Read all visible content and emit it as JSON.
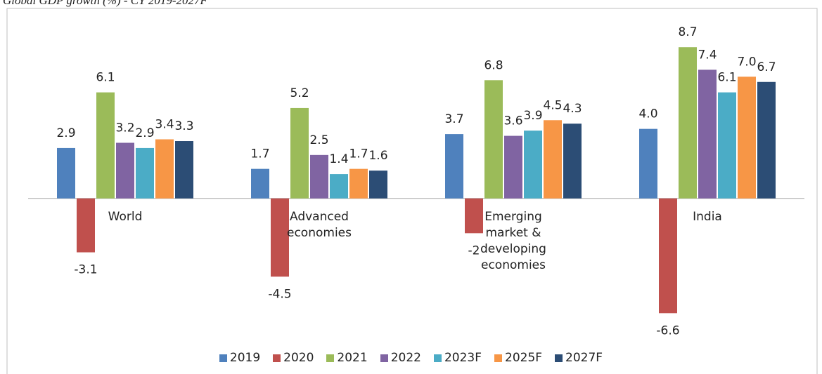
{
  "chart_data": {
    "type": "bar",
    "title": "Global GDP growth (%) - CY 2019-2027F",
    "categories": [
      "World",
      "Advanced economies",
      "Emerging market & developing economies",
      "India"
    ],
    "series": [
      {
        "name": "2019",
        "color": "#4f81bd",
        "values": [
          2.9,
          1.7,
          3.7,
          4.0
        ],
        "value_labels": [
          "2.9",
          "1.7",
          "3.7",
          "4.0"
        ]
      },
      {
        "name": "2020",
        "color": "#c0504d",
        "values": [
          -3.1,
          -4.5,
          -2,
          -6.6
        ],
        "value_labels": [
          "-3.1",
          "-4.5",
          "-2",
          "-6.6"
        ]
      },
      {
        "name": "2021",
        "color": "#9bbb59",
        "values": [
          6.1,
          5.2,
          6.8,
          8.7
        ],
        "value_labels": [
          "6.1",
          "5.2",
          "6.8",
          "8.7"
        ]
      },
      {
        "name": "2022",
        "color": "#8064a2",
        "values": [
          3.2,
          2.5,
          3.6,
          7.4
        ],
        "value_labels": [
          "3.2",
          "2.5",
          "3.6",
          "7.4"
        ]
      },
      {
        "name": "2023F",
        "color": "#4bacc6",
        "values": [
          2.9,
          1.4,
          3.9,
          6.1
        ],
        "value_labels": [
          "2.9",
          "1.4",
          "3.9",
          "6.1"
        ]
      },
      {
        "name": "2025F",
        "color": "#f79646",
        "values": [
          3.4,
          1.7,
          4.5,
          7.0
        ],
        "value_labels": [
          "3.4",
          "1.7",
          "4.5",
          "7.0"
        ]
      },
      {
        "name": "2027F",
        "color": "#2c4d75",
        "values": [
          3.3,
          1.6,
          4.3,
          6.7
        ],
        "value_labels": [
          "3.3",
          "1.6",
          "4.3",
          "6.7"
        ]
      }
    ],
    "ylim": [
      -8,
      10
    ],
    "legend": "bottom"
  }
}
